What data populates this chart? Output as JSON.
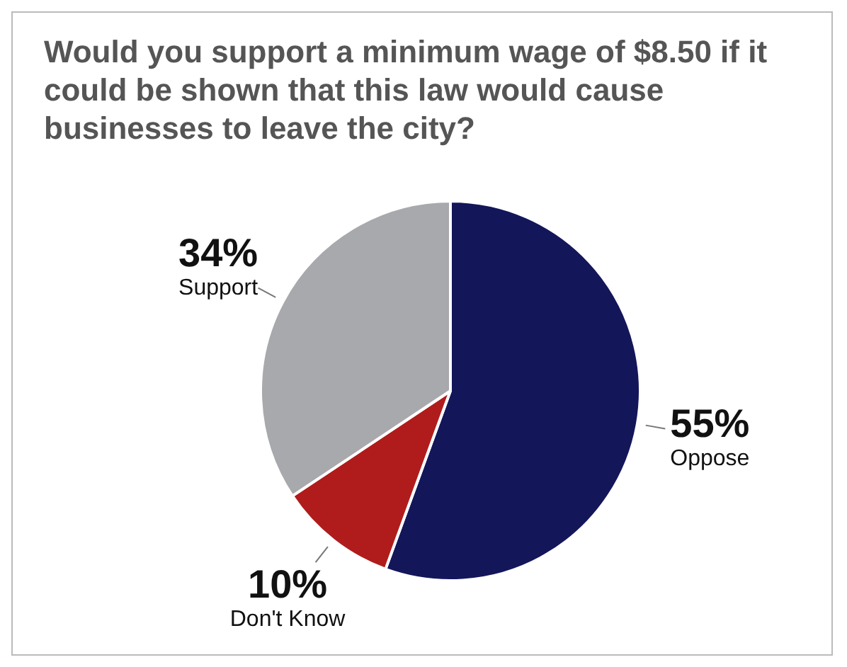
{
  "chart_data": {
    "type": "pie",
    "title": "Would you support a minimum wage of $8.50 if it could be shown that this law would cause businesses to leave the city?",
    "categories": [
      "Oppose",
      "Don't Know",
      "Support"
    ],
    "values": [
      55,
      10,
      34
    ],
    "value_labels": [
      "55%",
      "10%",
      "34%"
    ],
    "colors": [
      "#14165a",
      "#b01c1c",
      "#a7a9ac"
    ],
    "legend": false
  }
}
